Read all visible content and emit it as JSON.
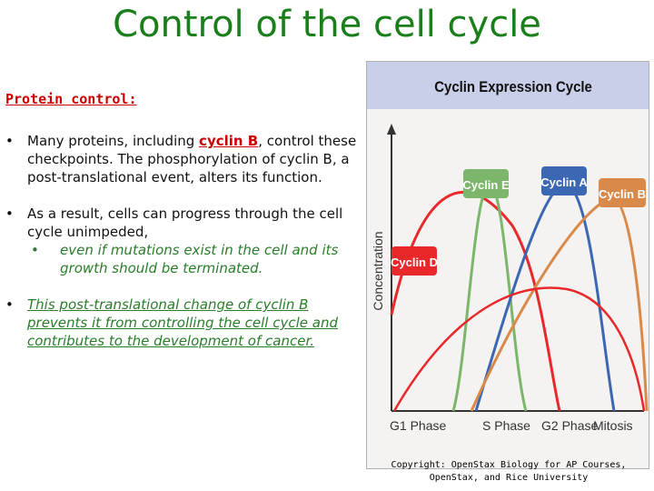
{
  "title": "Control of the cell cycle",
  "section_heading": "Protein control:",
  "bullets": [
    {
      "before": "Many proteins, including ",
      "highlight": "cyclin B",
      "after": ", control these checkpoints. The phosphorylation of cyclin B, a post-translational event, alters its function."
    },
    {
      "text": "As a result, cells can progress through the cell cycle unimpeded,",
      "sub": "even if mutations exist in the cell and its growth should be terminated."
    },
    {
      "text": "This post-translational change of cyclin B prevents it from controlling the cell cycle and contributes to the development of cancer."
    }
  ],
  "figure": {
    "header_title": "Cyclin Expression Cycle",
    "y_axis_label": "Concentration",
    "x_labels": [
      "G1 Phase",
      "S Phase",
      "G2 Phase",
      "Mitosis"
    ],
    "curves": [
      {
        "name": "Cyclin D",
        "color": "#e8282a"
      },
      {
        "name": "Cyclin E",
        "color": "#7cb66a"
      },
      {
        "name": "Cyclin A",
        "color": "#3b67b3"
      },
      {
        "name": "Cyclin B",
        "color": "#d98a4a"
      }
    ]
  },
  "copyright": [
    "Copyright: OpenStax Biology for AP Courses,",
    "OpenStax, and Rice University"
  ]
}
